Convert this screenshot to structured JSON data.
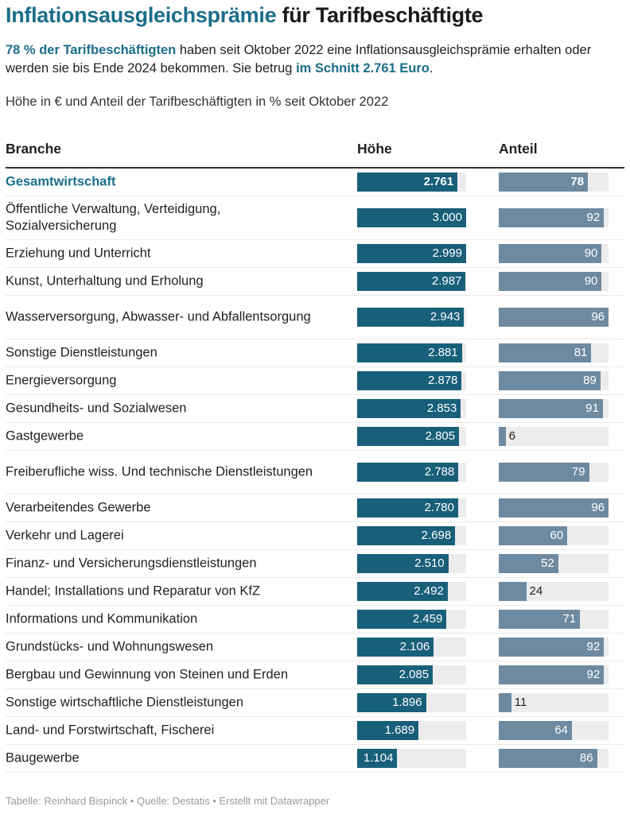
{
  "header": {
    "title_accent": "Inflationsausgleichsprämie",
    "title_rest": " für Tarifbeschäftigte",
    "intro": {
      "part1_bold": "78 % der Tarifbeschäftigten",
      "part2": " haben seit Oktober 2022 eine Inflationsausgleichsprämie erhalten oder werden sie bis Ende 2024 bekommen. Sie betrug ",
      "part3_bold": "im Schnitt 2.761 Euro",
      "part4": "."
    },
    "subtitle": "Höhe in € und Anteil der Tarifbeschäftigten in % seit Oktober 2022"
  },
  "colors": {
    "accent": "#1b6e8a",
    "bar_hoehe": "#185f7a",
    "bar_anteil": "#6e8aa0",
    "track": "#ececec"
  },
  "footer": "Tabelle: Reinhard Bispinck • Quelle: Destatis • Erstellt mit Datawrapper",
  "chart_data": {
    "type": "table",
    "title": "Inflationsausgleichsprämie für Tarifbeschäftigte",
    "columns": [
      "Branche",
      "Höhe",
      "Anteil"
    ],
    "hoehe_range": [
      0,
      3000
    ],
    "anteil_range": [
      0,
      96
    ],
    "rows": [
      {
        "branche": "Gesamtwirtschaft",
        "hoehe": 2761,
        "hoehe_label": "2.761",
        "anteil": 78,
        "anteil_label": "78",
        "highlight": true
      },
      {
        "branche": "Öffentliche Verwaltung, Verteidigung, Sozialversicherung",
        "hoehe": 3000,
        "hoehe_label": "3.000",
        "anteil": 92,
        "anteil_label": "92"
      },
      {
        "branche": "Erziehung und Unterricht",
        "hoehe": 2999,
        "hoehe_label": "2.999",
        "anteil": 90,
        "anteil_label": "90"
      },
      {
        "branche": "Kunst, Unterhaltung und Erholung",
        "hoehe": 2987,
        "hoehe_label": "2.987",
        "anteil": 90,
        "anteil_label": "90"
      },
      {
        "branche": "Wasserversorgung, Abwasser- und Abfallentsorgung",
        "hoehe": 2943,
        "hoehe_label": "2.943",
        "anteil": 96,
        "anteil_label": "96"
      },
      {
        "branche": "Sonstige Dienstleistungen",
        "hoehe": 2881,
        "hoehe_label": "2.881",
        "anteil": 81,
        "anteil_label": "81"
      },
      {
        "branche": "Energieversorgung",
        "hoehe": 2878,
        "hoehe_label": "2.878",
        "anteil": 89,
        "anteil_label": "89"
      },
      {
        "branche": "Gesundheits- und Sozialwesen",
        "hoehe": 2853,
        "hoehe_label": "2.853",
        "anteil": 91,
        "anteil_label": "91"
      },
      {
        "branche": "Gastgewerbe",
        "hoehe": 2805,
        "hoehe_label": "2.805",
        "anteil": 6,
        "anteil_label": "6"
      },
      {
        "branche": "Freiberufliche wiss. Und technische Dienstleistungen",
        "hoehe": 2788,
        "hoehe_label": "2.788",
        "anteil": 79,
        "anteil_label": "79"
      },
      {
        "branche": "Verarbeitendes Gewerbe",
        "hoehe": 2780,
        "hoehe_label": "2.780",
        "anteil": 96,
        "anteil_label": "96"
      },
      {
        "branche": "Verkehr und Lagerei",
        "hoehe": 2698,
        "hoehe_label": "2.698",
        "anteil": 60,
        "anteil_label": "60"
      },
      {
        "branche": "Finanz- und Versicherungsdienstleistungen",
        "hoehe": 2510,
        "hoehe_label": "2.510",
        "anteil": 52,
        "anteil_label": "52"
      },
      {
        "branche": "Handel; Installations und Reparatur von KfZ",
        "hoehe": 2492,
        "hoehe_label": "2.492",
        "anteil": 24,
        "anteil_label": "24"
      },
      {
        "branche": "Informations und Kommunikation",
        "hoehe": 2459,
        "hoehe_label": "2.459",
        "anteil": 71,
        "anteil_label": "71"
      },
      {
        "branche": "Grundstücks- und Wohnungswesen",
        "hoehe": 2106,
        "hoehe_label": "2.106",
        "anteil": 92,
        "anteil_label": "92"
      },
      {
        "branche": "Bergbau und Gewinnung von Steinen und Erden",
        "hoehe": 2085,
        "hoehe_label": "2.085",
        "anteil": 92,
        "anteil_label": "92"
      },
      {
        "branche": "Sonstige wirtschaftliche Dienstleistungen",
        "hoehe": 1896,
        "hoehe_label": "1.896",
        "anteil": 11,
        "anteil_label": "11"
      },
      {
        "branche": "Land- und Forstwirtschaft, Fischerei",
        "hoehe": 1689,
        "hoehe_label": "1.689",
        "anteil": 64,
        "anteil_label": "64"
      },
      {
        "branche": "Baugewerbe",
        "hoehe": 1104,
        "hoehe_label": "1.104",
        "anteil": 86,
        "anteil_label": "86"
      }
    ]
  }
}
